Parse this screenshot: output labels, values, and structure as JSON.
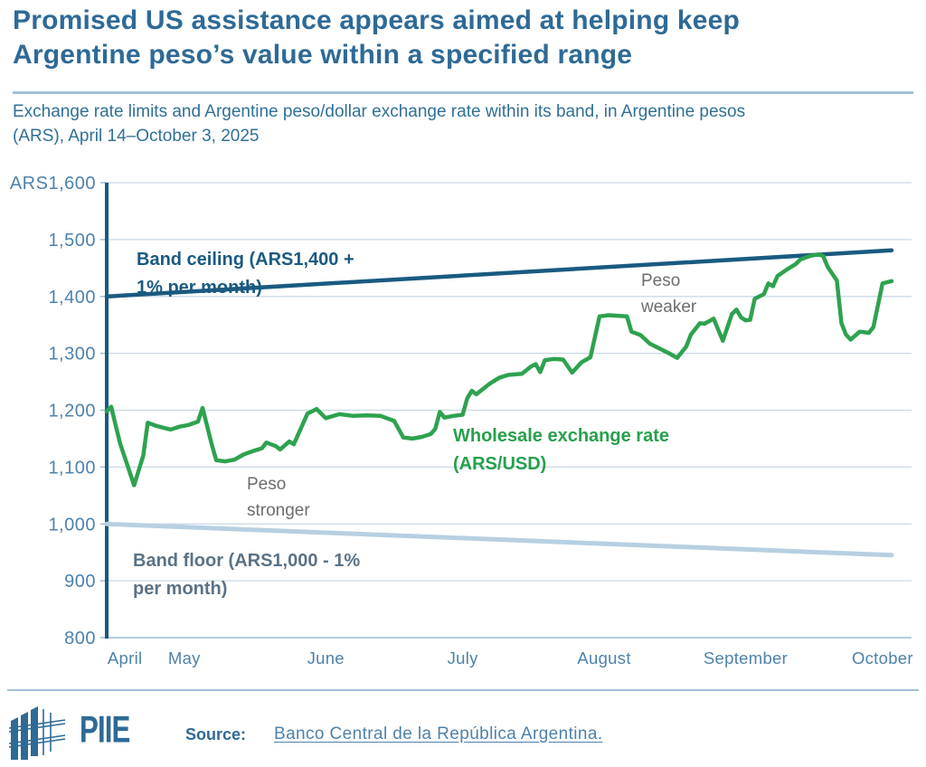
{
  "header": {
    "title": "Promised US assistance appears aimed at helping keep Argentine peso’s value within a specified range",
    "subtitle": "Exchange rate limits and Argentine peso/dollar exchange rate within its band, in Argentine pesos (ARS), April 14–October 3, 2025"
  },
  "chart_labels": {
    "ceiling": "Band ceiling (ARS1,400 +\n1% per month)",
    "floor": "Band floor (ARS1,000 - 1%\nper month)",
    "wholesale": "Wholesale exchange rate\n(ARS/USD)",
    "peso_stronger": "Peso\nstronger",
    "peso_weaker": "Peso\nweaker"
  },
  "colors": {
    "title_blue": "#2e6a96",
    "subtitle_blue": "#2f7096",
    "band_ceiling": "#1a5a80",
    "band_floor": "#b7cfe2",
    "wholesale_green": "#2ea24f",
    "gridline": "#c9d8e6",
    "axis_bottom": "#9cbcd3",
    "tick_label": "#4d82ab",
    "annotation_gray": "#6d6d6d",
    "floor_label": "#5b7285"
  },
  "footer": {
    "logo_text": "PIIE",
    "source_label": "Source:",
    "source_link": "Banco Central de la República Argentina."
  },
  "chart_data": {
    "type": "line",
    "title": "Promised US assistance appears aimed at helping keep Argentine peso’s value within a specified range",
    "subtitle": "Exchange rate limits and Argentine peso/dollar exchange rate within its band, in Argentine pesos (ARS), April 14–October 3, 2025",
    "grid": true,
    "legend_position": "inline-annotations",
    "x_range": [
      "2025-04-14",
      "2025-10-03"
    ],
    "y_axis": {
      "min": 800,
      "max": 1600,
      "tick_step": 100,
      "ticks": [
        {
          "label": "ARS1,600",
          "value": 1600
        },
        {
          "label": "1,500",
          "value": 1500
        },
        {
          "label": "1,400",
          "value": 1400
        },
        {
          "label": "1,300",
          "value": 1300
        },
        {
          "label": "1,200",
          "value": 1200
        },
        {
          "label": "1,100",
          "value": 1100
        },
        {
          "label": "1,000",
          "value": 1000
        },
        {
          "label": "900",
          "value": 900
        },
        {
          "label": "800",
          "value": 800
        }
      ]
    },
    "x_axis": {
      "ticks": [
        {
          "label": "April",
          "date": "2025-04-18"
        },
        {
          "label": "May",
          "date": "2025-05-01"
        },
        {
          "label": "June",
          "date": "2025-06-01"
        },
        {
          "label": "July",
          "date": "2025-07-01"
        },
        {
          "label": "August",
          "date": "2025-08-01"
        },
        {
          "label": "September",
          "date": "2025-09-01"
        },
        {
          "label": "October",
          "date": "2025-10-01"
        }
      ]
    },
    "annotations": [
      "Peso stronger",
      "Peso weaker"
    ],
    "series": [
      {
        "id": "band-floor",
        "name": "Band floor (ARS1,000 - 1% per month)",
        "color": "#b7cfe2",
        "width": 5,
        "points": [
          [
            "2025-04-14",
            1000
          ],
          [
            "2025-10-03",
            945
          ]
        ]
      },
      {
        "id": "band-ceiling",
        "name": "Band ceiling (ARS1,400 + 1% per month)",
        "color": "#1a5a80",
        "width": 4.5,
        "points": [
          [
            "2025-04-14",
            1400
          ],
          [
            "2025-10-03",
            1481
          ]
        ]
      },
      {
        "id": "wholesale-rate",
        "name": "Wholesale exchange rate (ARS/USD)",
        "color": "#2ea24f",
        "width": 4.5,
        "points": [
          [
            "2025-04-14",
            1198
          ],
          [
            "2025-04-15",
            1206
          ],
          [
            "2025-04-16",
            1172
          ],
          [
            "2025-04-17",
            1140
          ],
          [
            "2025-04-20",
            1068
          ],
          [
            "2025-04-22",
            1120
          ],
          [
            "2025-04-23",
            1178
          ],
          [
            "2025-04-25",
            1172
          ],
          [
            "2025-04-28",
            1166
          ],
          [
            "2025-04-30",
            1171
          ],
          [
            "2025-05-02",
            1174
          ],
          [
            "2025-05-04",
            1180
          ],
          [
            "2025-05-05",
            1204
          ],
          [
            "2025-05-07",
            1140
          ],
          [
            "2025-05-08",
            1112
          ],
          [
            "2025-05-10",
            1110
          ],
          [
            "2025-05-12",
            1113
          ],
          [
            "2025-05-14",
            1122
          ],
          [
            "2025-05-16",
            1128
          ],
          [
            "2025-05-18",
            1133
          ],
          [
            "2025-05-19",
            1143
          ],
          [
            "2025-05-21",
            1137
          ],
          [
            "2025-05-22",
            1131
          ],
          [
            "2025-05-24",
            1145
          ],
          [
            "2025-05-25",
            1140
          ],
          [
            "2025-05-28",
            1194
          ],
          [
            "2025-05-30",
            1202
          ],
          [
            "2025-06-01",
            1186
          ],
          [
            "2025-06-04",
            1193
          ],
          [
            "2025-06-07",
            1190
          ],
          [
            "2025-06-10",
            1191
          ],
          [
            "2025-06-13",
            1190
          ],
          [
            "2025-06-16",
            1181
          ],
          [
            "2025-06-18",
            1152
          ],
          [
            "2025-06-20",
            1150
          ],
          [
            "2025-06-22",
            1153
          ],
          [
            "2025-06-24",
            1158
          ],
          [
            "2025-06-25",
            1167
          ],
          [
            "2025-06-26",
            1197
          ],
          [
            "2025-06-27",
            1187
          ],
          [
            "2025-06-29",
            1190
          ],
          [
            "2025-07-01",
            1192
          ],
          [
            "2025-07-02",
            1221
          ],
          [
            "2025-07-03",
            1234
          ],
          [
            "2025-07-04",
            1228
          ],
          [
            "2025-07-07",
            1247
          ],
          [
            "2025-07-09",
            1257
          ],
          [
            "2025-07-11",
            1262
          ],
          [
            "2025-07-14",
            1264
          ],
          [
            "2025-07-16",
            1277
          ],
          [
            "2025-07-17",
            1281
          ],
          [
            "2025-07-18",
            1267
          ],
          [
            "2025-07-19",
            1288
          ],
          [
            "2025-07-21",
            1290
          ],
          [
            "2025-07-23",
            1289
          ],
          [
            "2025-07-25",
            1266
          ],
          [
            "2025-07-27",
            1284
          ],
          [
            "2025-07-29",
            1293
          ],
          [
            "2025-07-31",
            1365
          ],
          [
            "2025-08-02",
            1367
          ],
          [
            "2025-08-04",
            1366
          ],
          [
            "2025-08-06",
            1365
          ],
          [
            "2025-08-07",
            1338
          ],
          [
            "2025-08-09",
            1332
          ],
          [
            "2025-08-11",
            1317
          ],
          [
            "2025-08-13",
            1309
          ],
          [
            "2025-08-15",
            1301
          ],
          [
            "2025-08-17",
            1292
          ],
          [
            "2025-08-19",
            1312
          ],
          [
            "2025-08-20",
            1333
          ],
          [
            "2025-08-22",
            1353
          ],
          [
            "2025-08-23",
            1352
          ],
          [
            "2025-08-25",
            1361
          ],
          [
            "2025-08-27",
            1322
          ],
          [
            "2025-08-29",
            1369
          ],
          [
            "2025-08-30",
            1377
          ],
          [
            "2025-08-31",
            1363
          ],
          [
            "2025-09-01",
            1358
          ],
          [
            "2025-09-02",
            1359
          ],
          [
            "2025-09-03",
            1396
          ],
          [
            "2025-09-05",
            1404
          ],
          [
            "2025-09-06",
            1423
          ],
          [
            "2025-09-07",
            1418
          ],
          [
            "2025-09-08",
            1436
          ],
          [
            "2025-09-10",
            1447
          ],
          [
            "2025-09-12",
            1457
          ],
          [
            "2025-09-13",
            1465
          ],
          [
            "2025-09-15",
            1471
          ],
          [
            "2025-09-17",
            1474
          ],
          [
            "2025-09-18",
            1471
          ],
          [
            "2025-09-19",
            1452
          ],
          [
            "2025-09-21",
            1428
          ],
          [
            "2025-09-22",
            1353
          ],
          [
            "2025-09-23",
            1333
          ],
          [
            "2025-09-24",
            1324
          ],
          [
            "2025-09-26",
            1338
          ],
          [
            "2025-09-28",
            1336
          ],
          [
            "2025-09-29",
            1346
          ],
          [
            "2025-10-01",
            1423
          ],
          [
            "2025-10-03",
            1427
          ]
        ]
      }
    ]
  }
}
